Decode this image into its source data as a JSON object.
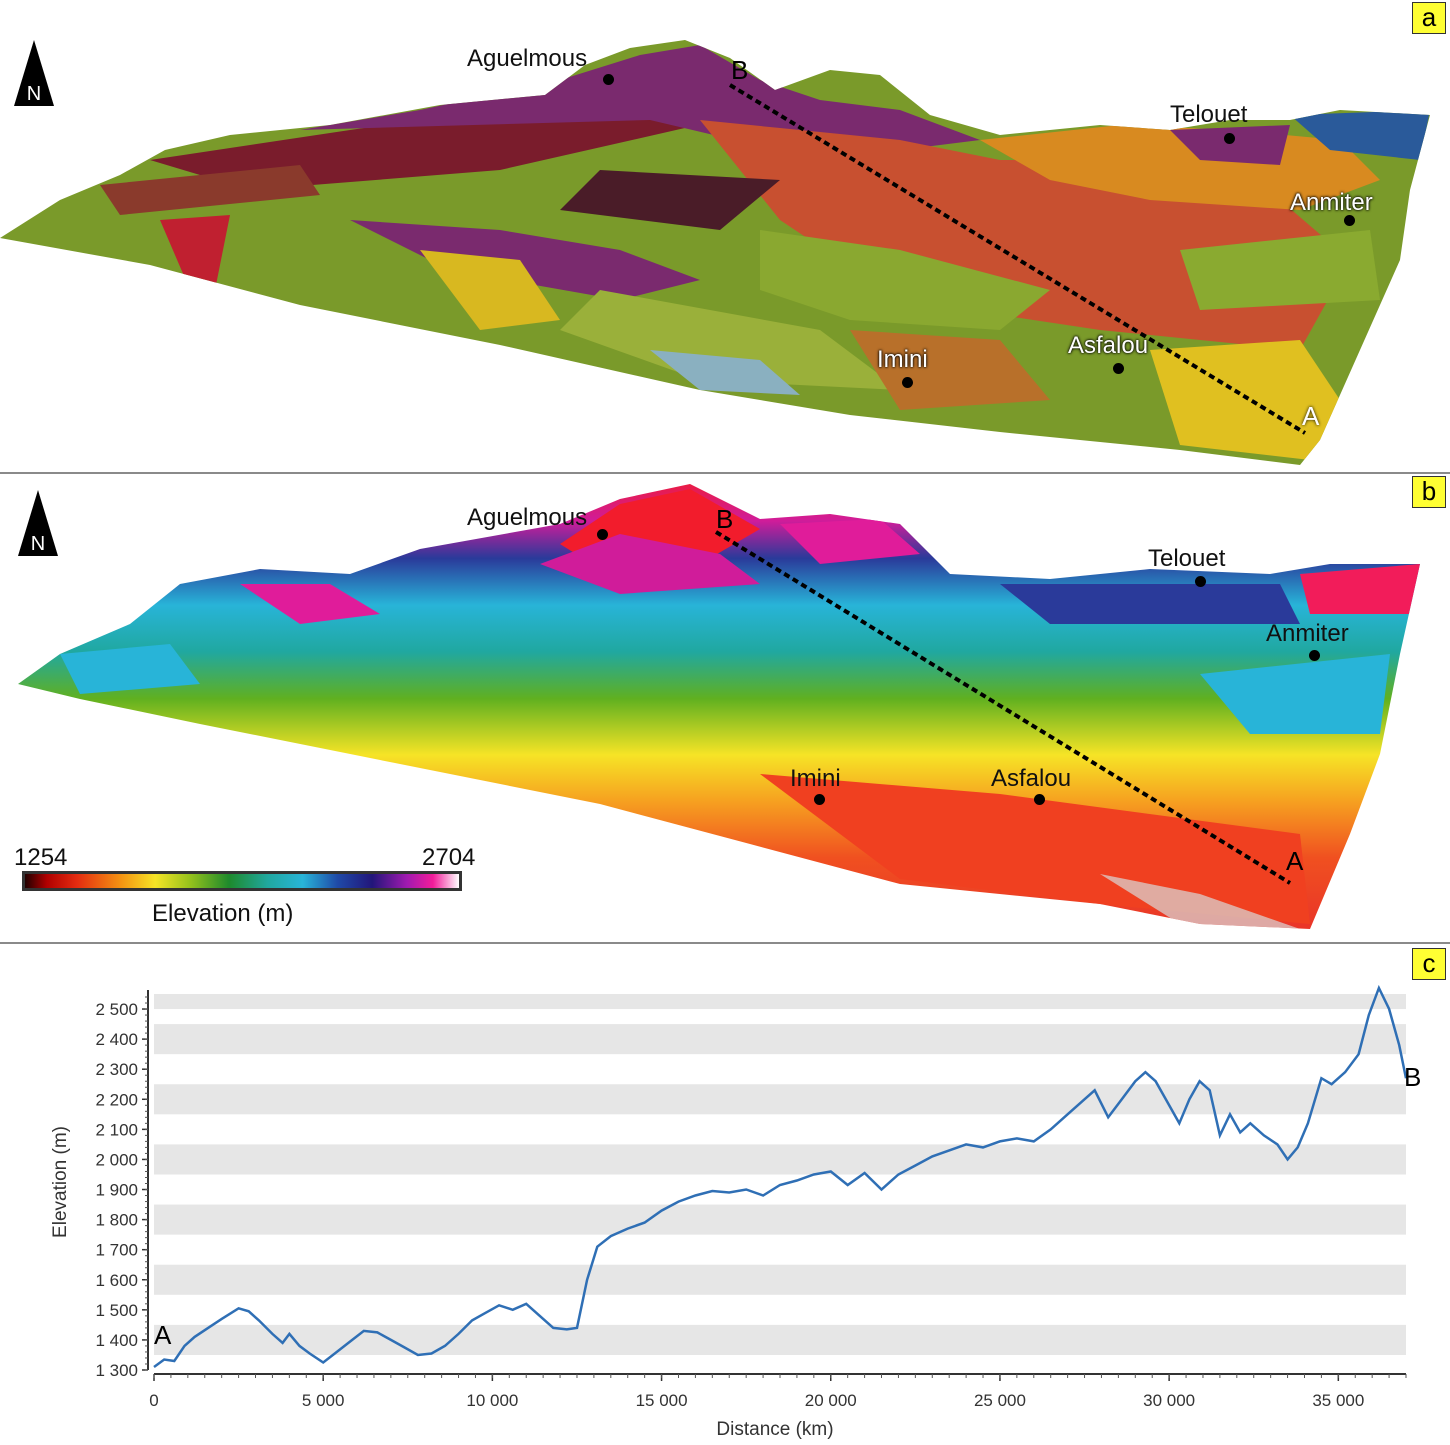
{
  "panels": {
    "a": {
      "badge": "a",
      "north": "N",
      "places": {
        "aguelmous": "Aguelmous",
        "telouet": "Telouet",
        "anmiter": "Anmiter",
        "imini": "Imini",
        "asfalou": "Asfalou"
      },
      "profile_start": "A",
      "profile_end": "B"
    },
    "b": {
      "badge": "b",
      "north": "N",
      "places": {
        "aguelmous": "Aguelmous",
        "telouet": "Telouet",
        "anmiter": "Anmiter",
        "imini": "Imini",
        "asfalou": "Asfalou"
      },
      "profile_start": "A",
      "profile_end": "B",
      "colorbar": {
        "min_label": "1254",
        "max_label": "2704",
        "title": "Elevation (m)"
      }
    },
    "c": {
      "badge": "c"
    }
  },
  "chart_data": {
    "type": "line",
    "xlabel": "Distance (km)",
    "ylabel": "Elevation (m)",
    "xlim": [
      0,
      37000
    ],
    "ylim": [
      1300,
      2550
    ],
    "xticks": [
      0,
      5000,
      10000,
      15000,
      20000,
      25000,
      30000,
      35000
    ],
    "xtick_labels": [
      "0",
      "5 000",
      "10 000",
      "15 000",
      "20 000",
      "25 000",
      "30 000",
      "35 000"
    ],
    "yticks": [
      1300,
      1400,
      1500,
      1600,
      1700,
      1800,
      1900,
      2000,
      2100,
      2200,
      2300,
      2400,
      2500
    ],
    "ytick_labels": [
      "1 300",
      "1 400",
      "1 500",
      "1 600",
      "1 700",
      "1 800",
      "1 900",
      "2 000",
      "2 100",
      "2 200",
      "2 300",
      "2 400",
      "2 500"
    ],
    "start_label": "A",
    "end_label": "B",
    "line_color": "#2f6fb5",
    "band_color": "#e6e6e6",
    "x": [
      0,
      300,
      600,
      900,
      1200,
      1600,
      2000,
      2500,
      2800,
      3100,
      3500,
      3800,
      4000,
      4300,
      4600,
      5000,
      5400,
      5800,
      6200,
      6600,
      7000,
      7400,
      7800,
      8200,
      8600,
      9000,
      9400,
      9800,
      10200,
      10600,
      11000,
      11400,
      11800,
      12200,
      12500,
      12800,
      13100,
      13500,
      14000,
      14500,
      15000,
      15500,
      16000,
      16500,
      17000,
      17500,
      18000,
      18500,
      19000,
      19500,
      20000,
      20500,
      21000,
      21500,
      22000,
      22500,
      23000,
      23500,
      24000,
      24500,
      25000,
      25500,
      26000,
      26500,
      27000,
      27500,
      27800,
      28200,
      28600,
      29000,
      29300,
      29600,
      29900,
      30300,
      30600,
      30900,
      31200,
      31500,
      31800,
      32100,
      32400,
      32800,
      33200,
      33500,
      33800,
      34100,
      34500,
      34800,
      35200,
      35600,
      35900,
      36200,
      36500,
      36800,
      37000
    ],
    "y": [
      1310,
      1335,
      1330,
      1380,
      1410,
      1440,
      1470,
      1505,
      1495,
      1465,
      1420,
      1390,
      1420,
      1380,
      1355,
      1325,
      1360,
      1395,
      1430,
      1425,
      1400,
      1375,
      1350,
      1355,
      1380,
      1420,
      1465,
      1490,
      1515,
      1500,
      1520,
      1480,
      1440,
      1435,
      1440,
      1600,
      1710,
      1745,
      1770,
      1790,
      1830,
      1860,
      1880,
      1895,
      1890,
      1900,
      1880,
      1915,
      1930,
      1950,
      1960,
      1915,
      1955,
      1900,
      1950,
      1980,
      2010,
      2030,
      2050,
      2040,
      2060,
      2070,
      2060,
      2100,
      2150,
      2200,
      2230,
      2140,
      2200,
      2260,
      2290,
      2260,
      2200,
      2120,
      2200,
      2260,
      2230,
      2080,
      2150,
      2090,
      2120,
      2080,
      2050,
      2000,
      2040,
      2120,
      2270,
      2250,
      2290,
      2350,
      2480,
      2570,
      2500,
      2380,
      2270
    ]
  }
}
